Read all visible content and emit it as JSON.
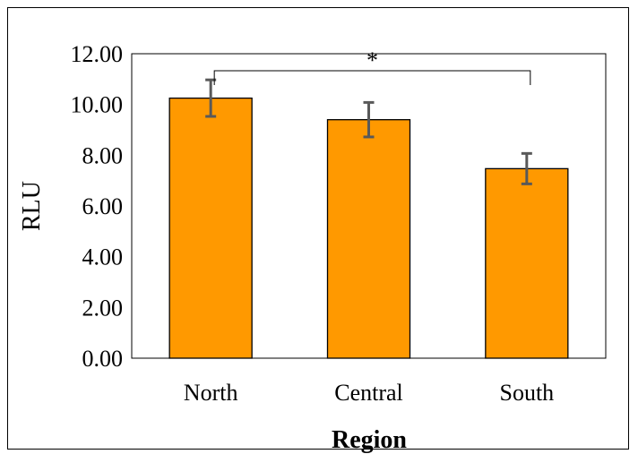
{
  "chart_data": {
    "type": "bar",
    "title": "",
    "xlabel": "Region",
    "ylabel": "RLU",
    "categories": [
      "North",
      "Central",
      "South"
    ],
    "values": [
      10.25,
      9.4,
      7.47
    ],
    "error": [
      0.72,
      0.68,
      0.6
    ],
    "ylim": [
      0,
      12
    ],
    "yticks": [
      "0.00",
      "2.00",
      "4.00",
      "6.00",
      "8.00",
      "10.00",
      "12.00"
    ],
    "grid": false,
    "legend": "none",
    "bar_color": "#FF9900",
    "error_bar_color": "#595959",
    "significance": {
      "from": "North",
      "to": "South",
      "label": "*"
    }
  }
}
